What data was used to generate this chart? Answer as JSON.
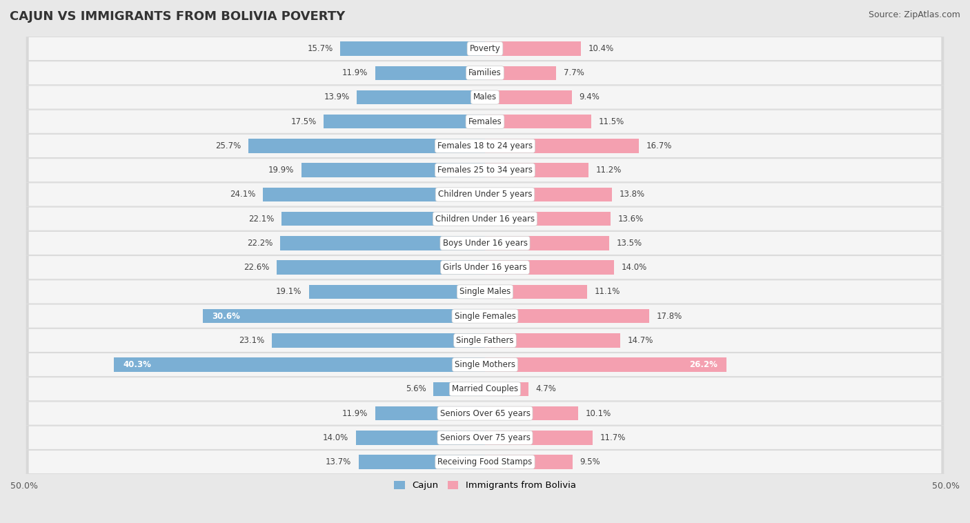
{
  "title": "CAJUN VS IMMIGRANTS FROM BOLIVIA POVERTY",
  "source": "Source: ZipAtlas.com",
  "categories": [
    "Poverty",
    "Families",
    "Males",
    "Females",
    "Females 18 to 24 years",
    "Females 25 to 34 years",
    "Children Under 5 years",
    "Children Under 16 years",
    "Boys Under 16 years",
    "Girls Under 16 years",
    "Single Males",
    "Single Females",
    "Single Fathers",
    "Single Mothers",
    "Married Couples",
    "Seniors Over 65 years",
    "Seniors Over 75 years",
    "Receiving Food Stamps"
  ],
  "cajun": [
    15.7,
    11.9,
    13.9,
    17.5,
    25.7,
    19.9,
    24.1,
    22.1,
    22.2,
    22.6,
    19.1,
    30.6,
    23.1,
    40.3,
    5.6,
    11.9,
    14.0,
    13.7
  ],
  "bolivia": [
    10.4,
    7.7,
    9.4,
    11.5,
    16.7,
    11.2,
    13.8,
    13.6,
    13.5,
    14.0,
    11.1,
    17.8,
    14.7,
    26.2,
    4.7,
    10.1,
    11.7,
    9.5
  ],
  "cajun_color": "#7bafd4",
  "bolivia_color": "#f4a0b0",
  "highlight_cajun_indices": [
    11,
    13
  ],
  "highlight_bolivia_indices": [
    13
  ],
  "axis_max": 50.0,
  "bg_color": "#e8e8e8",
  "row_inner_color": "#f5f5f5",
  "title_fontsize": 13,
  "source_fontsize": 9,
  "bar_label_fontsize": 8.5,
  "category_fontsize": 8.5,
  "legend_label_cajun": "Cajun",
  "legend_label_bolivia": "Immigrants from Bolivia"
}
